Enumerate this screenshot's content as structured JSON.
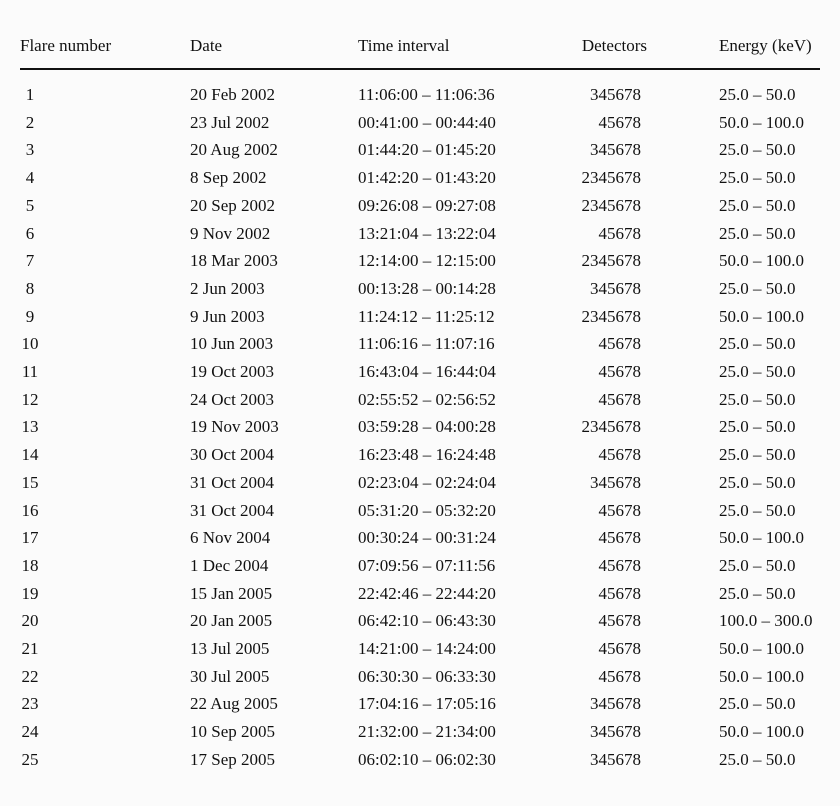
{
  "table": {
    "headers": [
      "Flare number",
      "Date",
      "Time interval",
      "Detectors",
      "Energy (keV)"
    ],
    "rows": [
      [
        "1",
        "20 Feb 2002",
        "11:06:00 – 11:06:36",
        "345678",
        "25.0 – 50.0"
      ],
      [
        "2",
        "23 Jul 2002",
        "00:41:00 – 00:44:40",
        "45678",
        "50.0 – 100.0"
      ],
      [
        "3",
        "20 Aug 2002",
        "01:44:20 – 01:45:20",
        "345678",
        "25.0 – 50.0"
      ],
      [
        "4",
        "8 Sep 2002",
        "01:42:20 – 01:43:20",
        "2345678",
        "25.0 – 50.0"
      ],
      [
        "5",
        "20 Sep 2002",
        "09:26:08 – 09:27:08",
        "2345678",
        "25.0 – 50.0"
      ],
      [
        "6",
        "9 Nov 2002",
        "13:21:04 – 13:22:04",
        "45678",
        "25.0 – 50.0"
      ],
      [
        "7",
        "18 Mar 2003",
        "12:14:00 – 12:15:00",
        "2345678",
        "50.0 – 100.0"
      ],
      [
        "8",
        "2 Jun 2003",
        "00:13:28 – 00:14:28",
        "345678",
        "25.0 – 50.0"
      ],
      [
        "9",
        "9 Jun 2003",
        "11:24:12 – 11:25:12",
        "2345678",
        "50.0 – 100.0"
      ],
      [
        "10",
        "10 Jun 2003",
        "11:06:16 – 11:07:16",
        "45678",
        "25.0 – 50.0"
      ],
      [
        "11",
        "19 Oct 2003",
        "16:43:04 – 16:44:04",
        "45678",
        "25.0 – 50.0"
      ],
      [
        "12",
        "24 Oct 2003",
        "02:55:52 – 02:56:52",
        "45678",
        "25.0 – 50.0"
      ],
      [
        "13",
        "19 Nov 2003",
        "03:59:28 – 04:00:28",
        "2345678",
        "25.0 – 50.0"
      ],
      [
        "14",
        "30 Oct 2004",
        "16:23:48 – 16:24:48",
        "45678",
        "25.0 – 50.0"
      ],
      [
        "15",
        "31 Oct 2004",
        "02:23:04 – 02:24:04",
        "345678",
        "25.0 – 50.0"
      ],
      [
        "16",
        "31 Oct 2004",
        "05:31:20 – 05:32:20",
        "45678",
        "25.0 – 50.0"
      ],
      [
        "17",
        "6 Nov 2004",
        "00:30:24 – 00:31:24",
        "45678",
        "50.0 – 100.0"
      ],
      [
        "18",
        "1 Dec 2004",
        "07:09:56 – 07:11:56",
        "45678",
        "25.0 – 50.0"
      ],
      [
        "19",
        "15 Jan 2005",
        "22:42:46 – 22:44:20",
        "45678",
        "25.0 – 50.0"
      ],
      [
        "20",
        "20 Jan 2005",
        "06:42:10 – 06:43:30",
        "45678",
        "100.0 – 300.0"
      ],
      [
        "21",
        "13 Jul 2005",
        "14:21:00 – 14:24:00",
        "45678",
        "50.0 – 100.0"
      ],
      [
        "22",
        "30 Jul 2005",
        "06:30:30 – 06:33:30",
        "45678",
        "50.0 – 100.0"
      ],
      [
        "23",
        "22 Aug 2005",
        "17:04:16 – 17:05:16",
        "345678",
        "25.0 – 50.0"
      ],
      [
        "24",
        "10 Sep 2005",
        "21:32:00 – 21:34:00",
        "345678",
        "50.0 – 100.0"
      ],
      [
        "25",
        "17 Sep 2005",
        "06:02:10 – 06:02:30",
        "345678",
        "25.0 – 50.0"
      ]
    ]
  }
}
